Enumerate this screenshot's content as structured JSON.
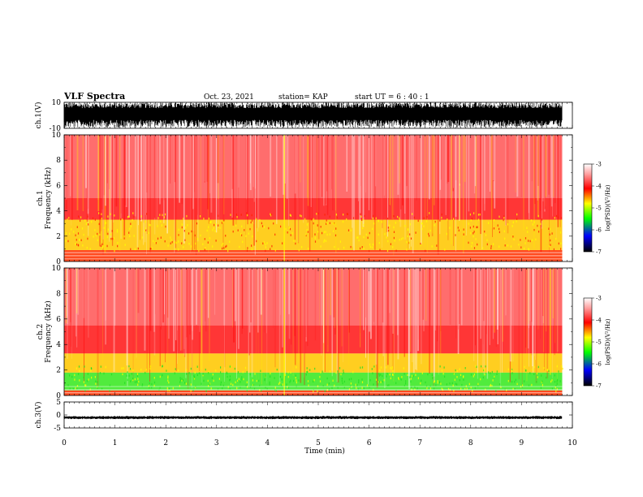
{
  "header": {
    "title": "VLF Spectra",
    "date": "Oct. 23, 2021",
    "station": "station= KAP",
    "start": "start  UT =   6  : 40 : 1"
  },
  "colorbar": {
    "label": "log(PSD)(V²/Hz)",
    "ticks": [
      "-3",
      "-4",
      "-5",
      "-6",
      "-7"
    ],
    "stops": [
      "#ffffff",
      "#ff8080",
      "#ff0000",
      "#ffff00",
      "#00ff00",
      "#0000ff",
      "#000000"
    ]
  },
  "chart_data": [
    {
      "type": "line",
      "title": "",
      "ylabel": "ch.1(V)",
      "ylim": [
        -10,
        10
      ],
      "y_ticks": [
        "10",
        "-10"
      ],
      "description_values": "dense broadband waveform spanning about -10 to 10 V over 0–9.8 min"
    },
    {
      "type": "heatmap",
      "ylabel": "ch.1 Frequency (kHz)",
      "ylim": [
        0,
        10
      ],
      "y_ticks": [
        "0",
        "2",
        "4",
        "6",
        "8",
        "10"
      ],
      "x_range_min": [
        0,
        9.8
      ],
      "bands": [
        {
          "from_khz": 0.0,
          "to_khz": 0.9,
          "level": -3.8
        },
        {
          "from_khz": 0.9,
          "to_khz": 3.3,
          "level": -4.3
        },
        {
          "from_khz": 3.3,
          "to_khz": 5.0,
          "level": -3.7
        },
        {
          "from_khz": 5.0,
          "to_khz": 10.0,
          "level": -3.2
        }
      ]
    },
    {
      "type": "heatmap",
      "ylabel": "ch.2 Frequency (kHz)",
      "ylim": [
        0,
        10
      ],
      "y_ticks": [
        "0",
        "2",
        "4",
        "6",
        "8",
        "10"
      ],
      "x_range_min": [
        0,
        9.8
      ],
      "bands": [
        {
          "from_khz": 0.0,
          "to_khz": 0.4,
          "level": -3.8
        },
        {
          "from_khz": 0.4,
          "to_khz": 1.8,
          "level": -5.0
        },
        {
          "from_khz": 1.8,
          "to_khz": 3.3,
          "level": -4.3
        },
        {
          "from_khz": 3.3,
          "to_khz": 5.5,
          "level": -3.6
        },
        {
          "from_khz": 5.5,
          "to_khz": 10.0,
          "level": -3.2
        }
      ]
    },
    {
      "type": "line",
      "ylabel": "ch.3(V)",
      "ylim": [
        -5,
        5
      ],
      "y_ticks": [
        "5",
        "0",
        "-5"
      ],
      "description_values": "near-constant band around -1 V over 0–9.8 min"
    }
  ],
  "xaxis": {
    "label": "Time  (min)",
    "ticks": [
      "0",
      "1",
      "2",
      "3",
      "4",
      "5",
      "6",
      "7",
      "8",
      "9",
      "10"
    ],
    "xlim": [
      0,
      10
    ]
  }
}
